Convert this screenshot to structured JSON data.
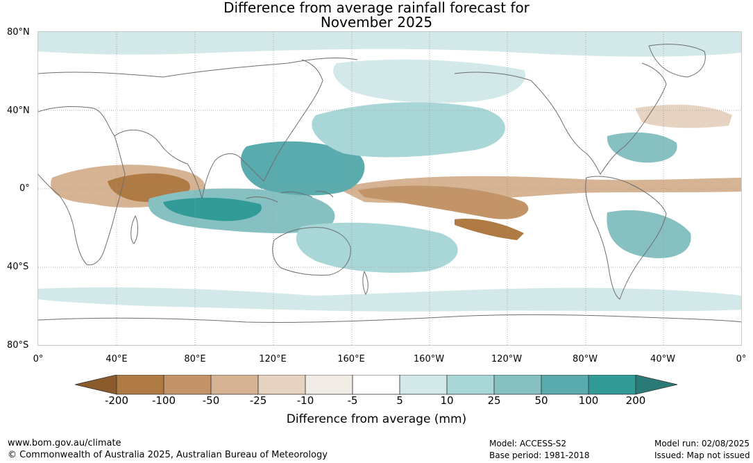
{
  "title_line1": "Difference from average rainfall forecast for",
  "title_line2": "November 2025",
  "lat_labels": [
    "80°N",
    "40°N",
    "0°",
    "40°S",
    "80°S"
  ],
  "lon_labels": [
    "0°",
    "40°E",
    "80°E",
    "120°E",
    "160°E",
    "160°W",
    "120°W",
    "80°W",
    "40°W",
    "0°"
  ],
  "colorbar": {
    "title": "Difference from average (mm)",
    "tick_labels": [
      "-200",
      "-100",
      "-50",
      "-25",
      "-10",
      "-5",
      "5",
      "10",
      "25",
      "50",
      "100",
      "200"
    ],
    "colors": [
      "#8b5a2b",
      "#b07a45",
      "#c39468",
      "#d5b393",
      "#e6d3c1",
      "#f1ebe6",
      "#ffffff",
      "#d3e8e8",
      "#a9d6d6",
      "#86c0c0",
      "#5aabad",
      "#329b98",
      "#2a7b78"
    ]
  },
  "footer": {
    "website": "www.bom.gov.au/climate",
    "copyright": "© Commonwealth of Australia 2025, Australian Bureau of Meteorology",
    "model": "Model: ACCESS-S2",
    "base_period": "Base period: 1981-2018",
    "model_run": "Model run: 02/08/2025",
    "issued": "Issued: Map not issued"
  }
}
